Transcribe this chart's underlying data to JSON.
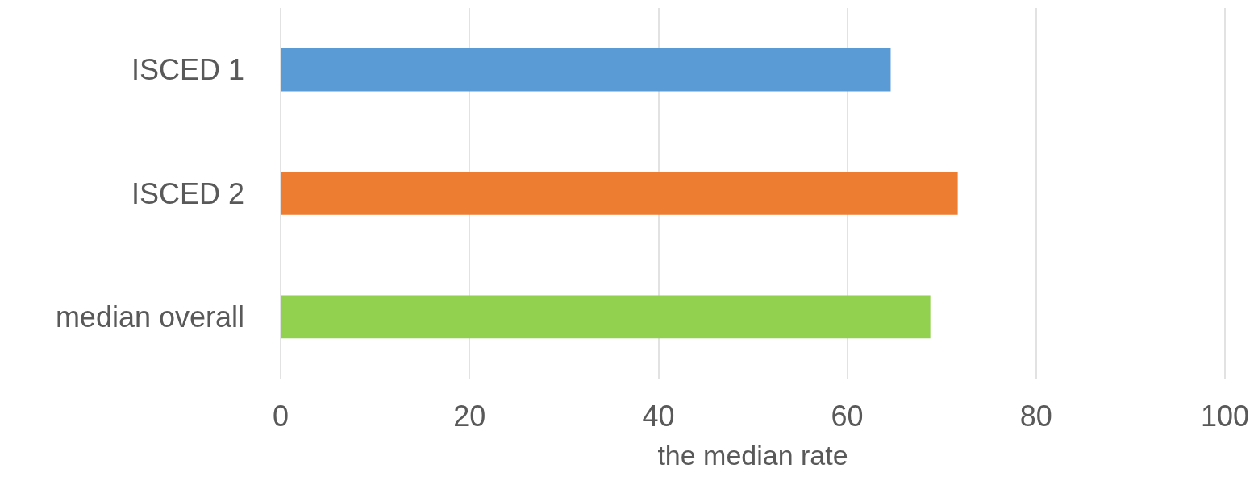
{
  "chart_data": {
    "type": "bar",
    "orientation": "horizontal",
    "xlabel": "the median rate",
    "categories": [
      "ISCED 1",
      "ISCED 2",
      "median overall"
    ],
    "values": [
      64.6,
      71.7,
      68.8
    ],
    "colors": [
      "#5b9bd5",
      "#ed7d31",
      "#92d050"
    ],
    "xlim": [
      0,
      100
    ],
    "xticks": [
      0,
      20,
      40,
      60,
      80,
      100
    ],
    "grid": "x"
  }
}
